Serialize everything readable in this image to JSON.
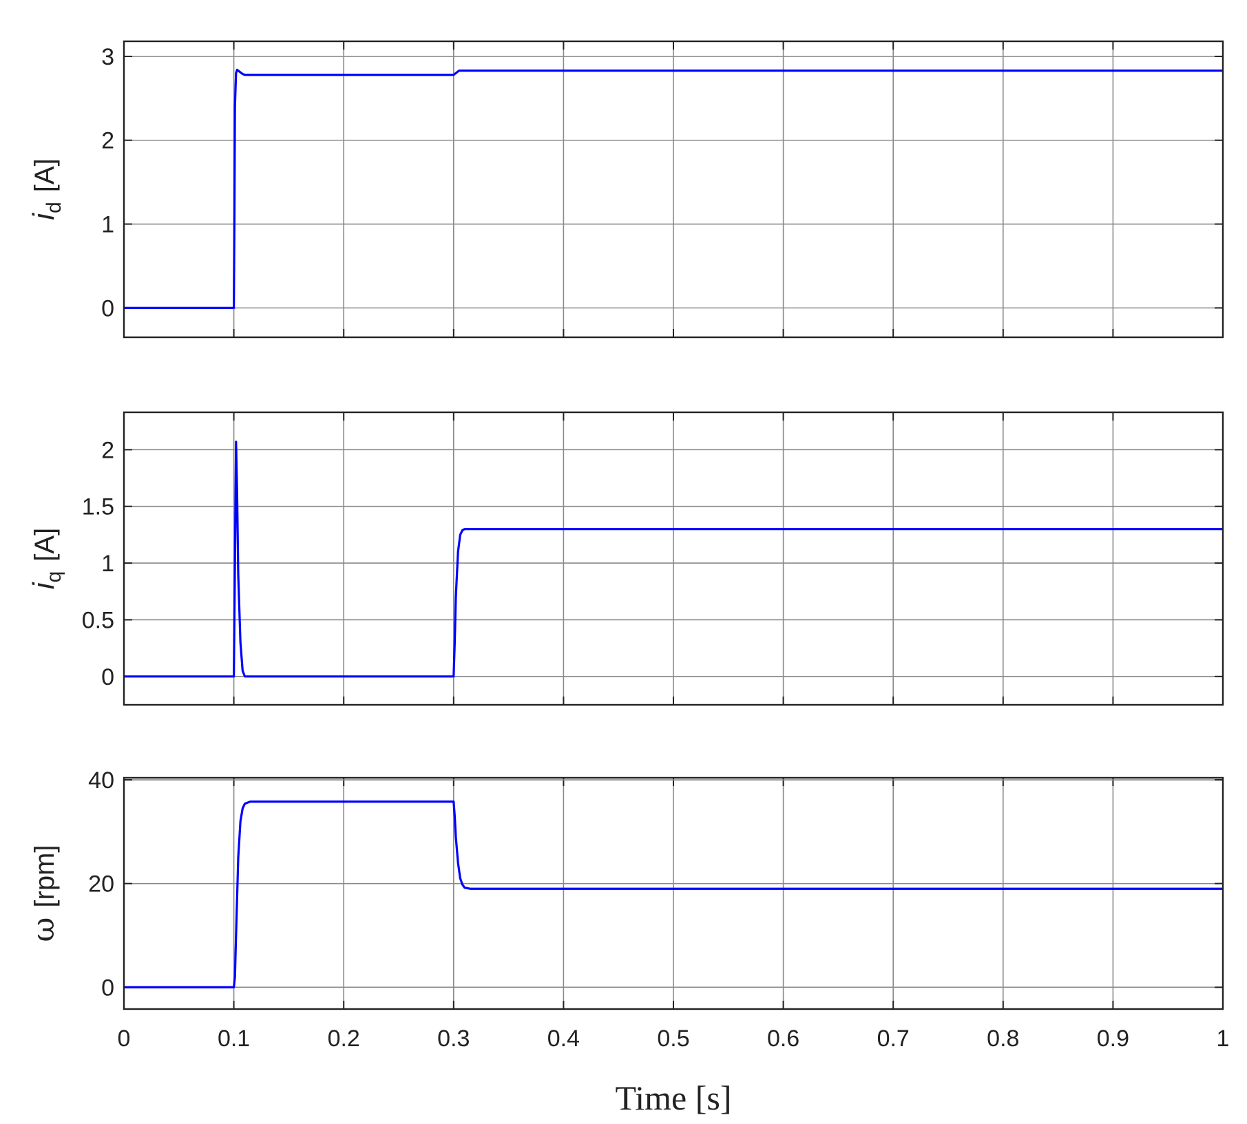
{
  "chart_data": [
    {
      "type": "line",
      "x": [
        0,
        0.1,
        0.1005,
        0.101,
        0.102,
        0.103,
        0.105,
        0.108,
        0.11,
        0.3,
        0.302,
        0.305,
        0.31,
        1
      ],
      "series": [
        {
          "color": "#0000ff",
          "values": [
            0,
            0,
            1,
            2.4,
            2.8,
            2.84,
            2.82,
            2.79,
            2.78,
            2.78,
            2.8,
            2.83,
            2.83,
            2.83
          ]
        }
      ],
      "xlim": [
        0,
        1
      ],
      "xticks": [
        0,
        0.1,
        0.2,
        0.3,
        0.4,
        0.5,
        0.6,
        0.7,
        0.8,
        0.9,
        1
      ],
      "ylim": [
        -0.35,
        3.18
      ],
      "yticks": [
        0,
        1,
        2,
        3
      ],
      "grid": true,
      "ylabel_symbol": "i",
      "ylabel_subscript": "d",
      "ylabel_unit": "[A]"
    },
    {
      "type": "line",
      "x": [
        0,
        0.1,
        0.101,
        0.102,
        0.103,
        0.104,
        0.106,
        0.108,
        0.11,
        0.3,
        0.301,
        0.302,
        0.304,
        0.306,
        0.308,
        0.31,
        0.315,
        1
      ],
      "series": [
        {
          "color": "#0000ff",
          "values": [
            0,
            0,
            1.0,
            2.07,
            1.6,
            0.9,
            0.3,
            0.05,
            0,
            0,
            0.3,
            0.7,
            1.1,
            1.25,
            1.29,
            1.3,
            1.3,
            1.3
          ]
        }
      ],
      "xlim": [
        0,
        1
      ],
      "xticks": [
        0,
        0.1,
        0.2,
        0.3,
        0.4,
        0.5,
        0.6,
        0.7,
        0.8,
        0.9,
        1
      ],
      "ylim": [
        -0.25,
        2.33
      ],
      "yticks": [
        0,
        0.5,
        1,
        1.5,
        2
      ],
      "grid": true,
      "ylabel_symbol": "i",
      "ylabel_subscript": "q",
      "ylabel_unit": "[A]"
    },
    {
      "type": "line",
      "x": [
        0,
        0.1,
        0.101,
        0.102,
        0.104,
        0.106,
        0.108,
        0.11,
        0.115,
        0.3,
        0.301,
        0.302,
        0.304,
        0.306,
        0.308,
        0.31,
        0.315,
        1
      ],
      "series": [
        {
          "color": "#0000ff",
          "values": [
            0,
            0,
            2,
            10,
            25,
            32,
            34.5,
            35.4,
            35.8,
            35.8,
            33,
            29,
            24,
            21,
            19.8,
            19.2,
            19,
            19
          ]
        }
      ],
      "xlim": [
        0,
        1
      ],
      "xticks": [
        0,
        0.1,
        0.2,
        0.3,
        0.4,
        0.5,
        0.6,
        0.7,
        0.8,
        0.9,
        1
      ],
      "ylim": [
        -4.2,
        40.4
      ],
      "yticks": [
        0,
        20,
        40
      ],
      "grid": true,
      "ylabel_symbol": "ω",
      "ylabel_unit": "[rpm]",
      "xlabel": "Time [s]"
    }
  ]
}
